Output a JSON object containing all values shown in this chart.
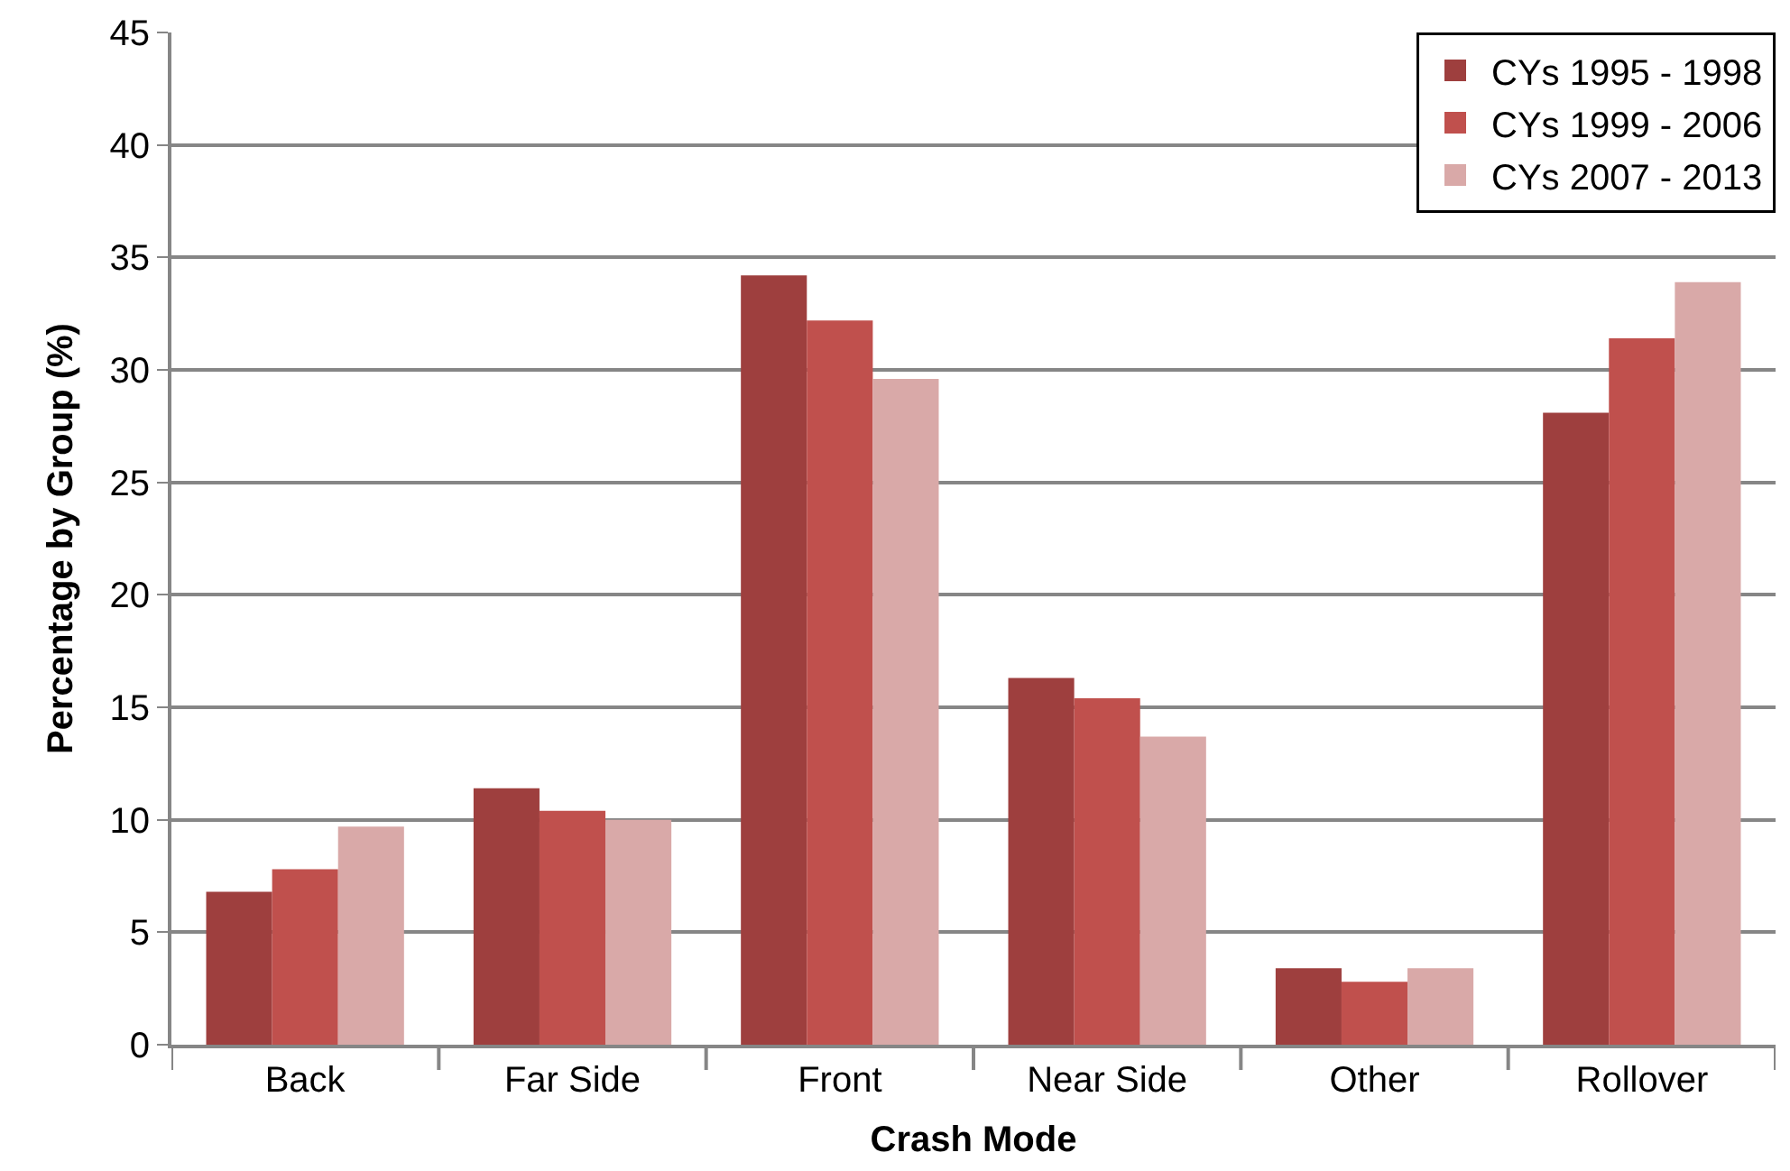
{
  "chart_data": {
    "type": "bar",
    "xlabel": "Crash Mode",
    "ylabel": "Percentage by Group (%)",
    "categories": [
      "Back",
      "Far Side",
      "Front",
      "Near Side",
      "Other",
      "Rollover"
    ],
    "series": [
      {
        "name": "CYs 1995 - 1998",
        "color": "#9e3f3e",
        "values": [
          6.8,
          11.4,
          34.2,
          16.3,
          3.4,
          28.1
        ]
      },
      {
        "name": "CYs 1999 - 2006",
        "color": "#c0504d",
        "values": [
          7.8,
          10.4,
          32.2,
          15.4,
          2.8,
          31.4
        ]
      },
      {
        "name": "CYs 2007 - 2013",
        "color": "#d9a9a8",
        "values": [
          9.7,
          10.0,
          29.6,
          13.7,
          3.4,
          33.9
        ]
      }
    ],
    "ylim": [
      0,
      45
    ],
    "yticks": [
      0,
      5,
      10,
      15,
      20,
      25,
      30,
      35,
      40,
      45
    ],
    "grid": "y",
    "legend": "top right"
  }
}
